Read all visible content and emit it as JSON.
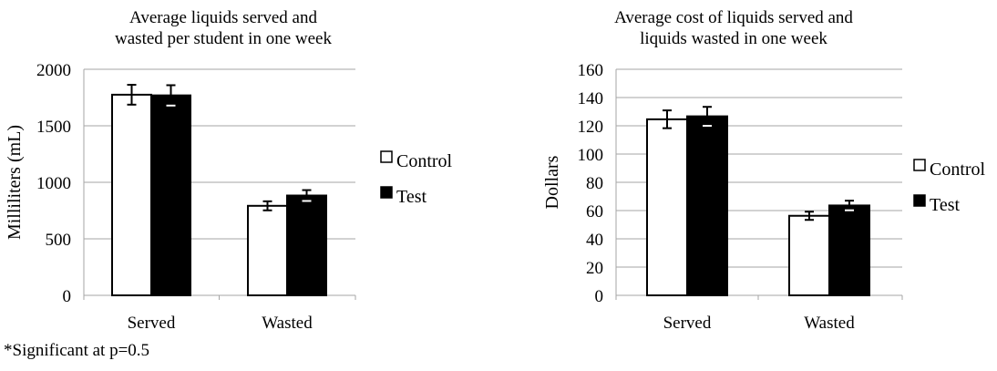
{
  "footnote": "*Significant at p=0.5",
  "colors": {
    "control": "#ffffff",
    "test": "#000000",
    "grid": "#a6a6a6"
  },
  "chart_data": [
    {
      "type": "bar",
      "title": [
        "Average liquids served and",
        "wasted per student in one week"
      ],
      "xlabel": "",
      "ylabel": "Milliliters (mL)",
      "categories": [
        "Served",
        "Wasted"
      ],
      "ylim": [
        0,
        2000
      ],
      "yticks": [
        0,
        500,
        1000,
        1500,
        2000
      ],
      "grid": true,
      "legend_position": "right",
      "series": [
        {
          "name": "Control",
          "values": [
            1775,
            792
          ],
          "errors": [
            88,
            40
          ]
        },
        {
          "name": "Test",
          "values": [
            1769,
            883
          ],
          "errors": [
            90,
            48
          ]
        }
      ]
    },
    {
      "type": "bar",
      "title": [
        "Average cost of liquids served and",
        "liquids wasted in one week"
      ],
      "xlabel": "",
      "ylabel": "Dollars",
      "categories": [
        "Served",
        "Wasted"
      ],
      "ylim": [
        0,
        160
      ],
      "yticks": [
        0,
        20,
        40,
        60,
        80,
        100,
        120,
        140,
        160
      ],
      "grid": true,
      "legend_position": "right",
      "series": [
        {
          "name": "Control",
          "values": [
            124.6,
            56.3
          ],
          "errors": [
            6.3,
            2.9
          ]
        },
        {
          "name": "Test",
          "values": [
            126.7,
            63.6
          ],
          "errors": [
            6.7,
            3.4
          ]
        }
      ]
    }
  ]
}
